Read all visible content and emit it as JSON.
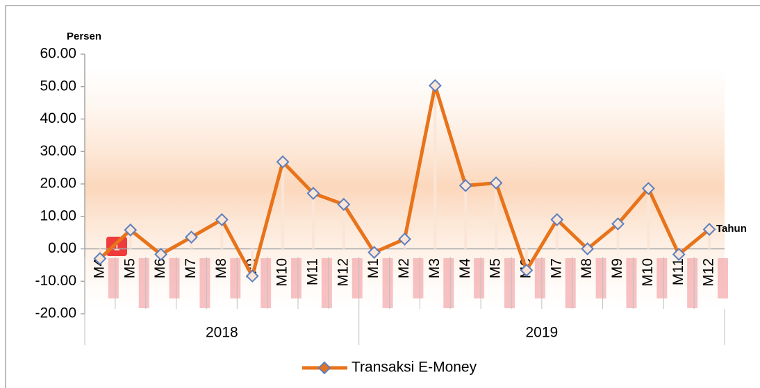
{
  "badge": "1",
  "chart_data": {
    "type": "line",
    "y_label": "Persen",
    "x_label": "Tahun",
    "groups": [
      {
        "name": "2018",
        "categories": [
          "M4",
          "M5",
          "M6",
          "M7",
          "M8",
          "M9",
          "M10",
          "M11",
          "M12"
        ]
      },
      {
        "name": "2019",
        "categories": [
          "M1",
          "M2",
          "M3",
          "M4",
          "M5",
          "M6",
          "M7",
          "M8",
          "M9",
          "M10",
          "M11",
          "M12"
        ]
      }
    ],
    "series": [
      {
        "name": "Transaksi E-Money",
        "color": "#e8731a",
        "marker_color": "#5b7fbf",
        "values": [
          -3.0,
          5.8,
          -1.7,
          3.6,
          9.0,
          -8.4,
          26.8,
          17.1,
          13.7,
          -1.1,
          3.0,
          50.3,
          19.5,
          20.3,
          -6.6,
          9.0,
          0.0,
          7.7,
          18.6,
          -1.7,
          6.0
        ]
      }
    ],
    "ylim": [
      -20,
      60
    ],
    "yticks": [
      {
        "value": -20,
        "label": "-20.00"
      },
      {
        "value": -10,
        "label": "-10.00"
      },
      {
        "value": 0,
        "label": "0.00"
      },
      {
        "value": 10,
        "label": "10.00"
      },
      {
        "value": 20,
        "label": "20.00"
      },
      {
        "value": 30,
        "label": "30.00"
      },
      {
        "value": 40,
        "label": "40.00"
      },
      {
        "value": 50,
        "label": "50.00"
      },
      {
        "value": 60,
        "label": "60.00"
      }
    ],
    "legend": "bottom"
  }
}
